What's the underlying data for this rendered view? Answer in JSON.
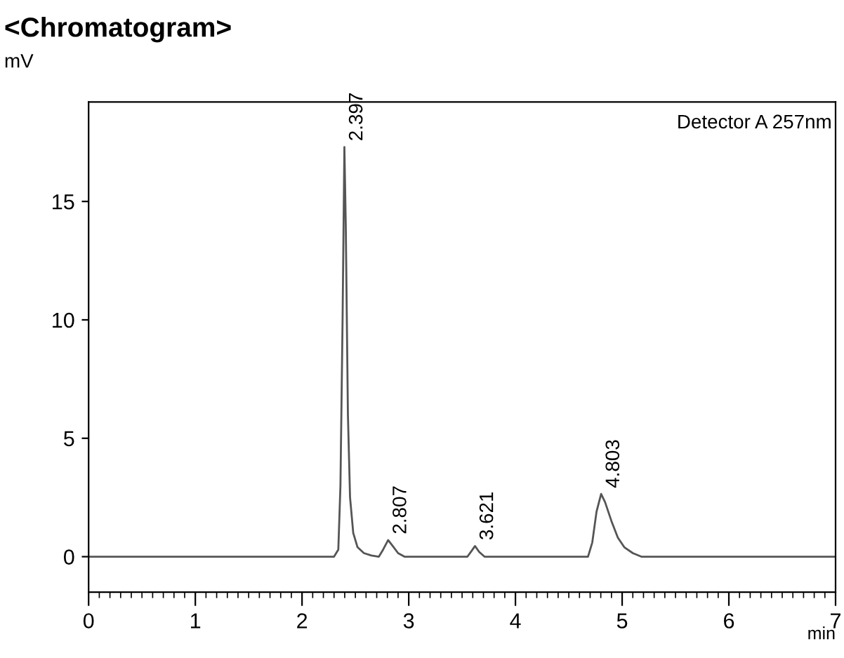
{
  "chart_data": {
    "type": "line",
    "title": "<Chromatogram>",
    "ylabel": "mV",
    "xlabel": "min",
    "x": [
      0,
      1.0,
      2.0,
      2.3,
      2.34,
      2.36,
      2.38,
      2.397,
      2.41,
      2.43,
      2.45,
      2.48,
      2.52,
      2.58,
      2.65,
      2.72,
      2.76,
      2.807,
      2.85,
      2.9,
      2.96,
      3.3,
      3.55,
      3.59,
      3.621,
      3.66,
      3.71,
      4.2,
      4.68,
      4.72,
      4.76,
      4.803,
      4.84,
      4.9,
      4.96,
      5.02,
      5.1,
      5.18,
      6.0,
      7.0
    ],
    "series": [
      {
        "color": "#555555",
        "values": [
          0,
          0,
          0,
          0,
          0.3,
          3,
          10,
          17.3,
          14,
          6,
          2.5,
          1,
          0.4,
          0.15,
          0.05,
          0,
          0.3,
          0.7,
          0.45,
          0.15,
          0,
          0,
          0,
          0.25,
          0.45,
          0.2,
          0,
          0,
          0,
          0.6,
          1.9,
          2.65,
          2.3,
          1.5,
          0.8,
          0.4,
          0.15,
          0,
          0,
          0
        ]
      }
    ],
    "xlim": [
      0,
      7
    ],
    "ylim": [
      -1.5,
      19.2
    ],
    "xticks": [
      0,
      1,
      2,
      3,
      4,
      5,
      6,
      7,
      {
        "value": 0.1,
        "label": null
      },
      {
        "value": 0.2,
        "label": null
      },
      {
        "value": 0.3,
        "label": null
      },
      {
        "value": 0.4,
        "label": null
      },
      {
        "value": 0.5,
        "label": null
      },
      {
        "value": 0.6,
        "label": null
      },
      {
        "value": 0.7,
        "label": null
      },
      {
        "value": 0.8,
        "label": null
      },
      {
        "value": 0.9,
        "label": null
      },
      {
        "value": 1.1,
        "label": null
      },
      {
        "value": 1.2,
        "label": null
      },
      {
        "value": 1.3,
        "label": null
      },
      {
        "value": 1.4,
        "label": null
      },
      {
        "value": 1.5,
        "label": null
      },
      {
        "value": 1.6,
        "label": null
      },
      {
        "value": 1.7,
        "label": null
      },
      {
        "value": 1.8,
        "label": null
      },
      {
        "value": 1.9,
        "label": null
      },
      {
        "value": 2.1,
        "label": null
      },
      {
        "value": 2.2,
        "label": null
      },
      {
        "value": 2.3,
        "label": null
      },
      {
        "value": 2.4,
        "label": null
      },
      {
        "value": 2.5,
        "label": null
      },
      {
        "value": 2.6,
        "label": null
      },
      {
        "value": 2.7,
        "label": null
      },
      {
        "value": 2.8,
        "label": null
      },
      {
        "value": 2.9,
        "label": null
      },
      {
        "value": 3.1,
        "label": null
      },
      {
        "value": 3.2,
        "label": null
      },
      {
        "value": 3.3,
        "label": null
      },
      {
        "value": 3.4,
        "label": null
      },
      {
        "value": 3.5,
        "label": null
      },
      {
        "value": 3.6,
        "label": null
      },
      {
        "value": 3.7,
        "label": null
      },
      {
        "value": 3.8,
        "label": null
      },
      {
        "value": 3.9,
        "label": null
      },
      {
        "value": 4.1,
        "label": null
      },
      {
        "value": 4.2,
        "label": null
      },
      {
        "value": 4.3,
        "label": null
      },
      {
        "value": 4.4,
        "label": null
      },
      {
        "value": 4.5,
        "label": null
      },
      {
        "value": 4.6,
        "label": null
      },
      {
        "value": 4.7,
        "label": null
      },
      {
        "value": 4.8,
        "label": null
      },
      {
        "value": 4.9,
        "label": null
      },
      {
        "value": 5.1,
        "label": null
      },
      {
        "value": 5.2,
        "label": null
      },
      {
        "value": 5.3,
        "label": null
      },
      {
        "value": 5.4,
        "label": null
      },
      {
        "value": 5.5,
        "label": null
      },
      {
        "value": 5.6,
        "label": null
      },
      {
        "value": 5.7,
        "label": null
      },
      {
        "value": 5.8,
        "label": null
      },
      {
        "value": 5.9,
        "label": null
      },
      {
        "value": 6.1,
        "label": null
      },
      {
        "value": 6.2,
        "label": null
      },
      {
        "value": 6.3,
        "label": null
      },
      {
        "value": 6.4,
        "label": null
      },
      {
        "value": 6.5,
        "label": null
      },
      {
        "value": 6.6,
        "label": null
      },
      {
        "value": 6.7,
        "label": null
      },
      {
        "value": 6.8,
        "label": null
      },
      {
        "value": 6.9,
        "label": null
      }
    ],
    "yticks": [
      0,
      5,
      10,
      15
    ],
    "annotations": [
      "Detector A 257nm",
      {
        "text": "2.397",
        "x": 2.397,
        "y": 17.3
      },
      {
        "text": "2.807",
        "x": 2.807,
        "y": 0.7
      },
      {
        "text": "3.621",
        "x": 3.621,
        "y": 0.45
      },
      {
        "text": "4.803",
        "x": 4.803,
        "y": 2.65
      }
    ],
    "grid": false,
    "legend": false,
    "marker": "none",
    "line_style": "solid"
  }
}
